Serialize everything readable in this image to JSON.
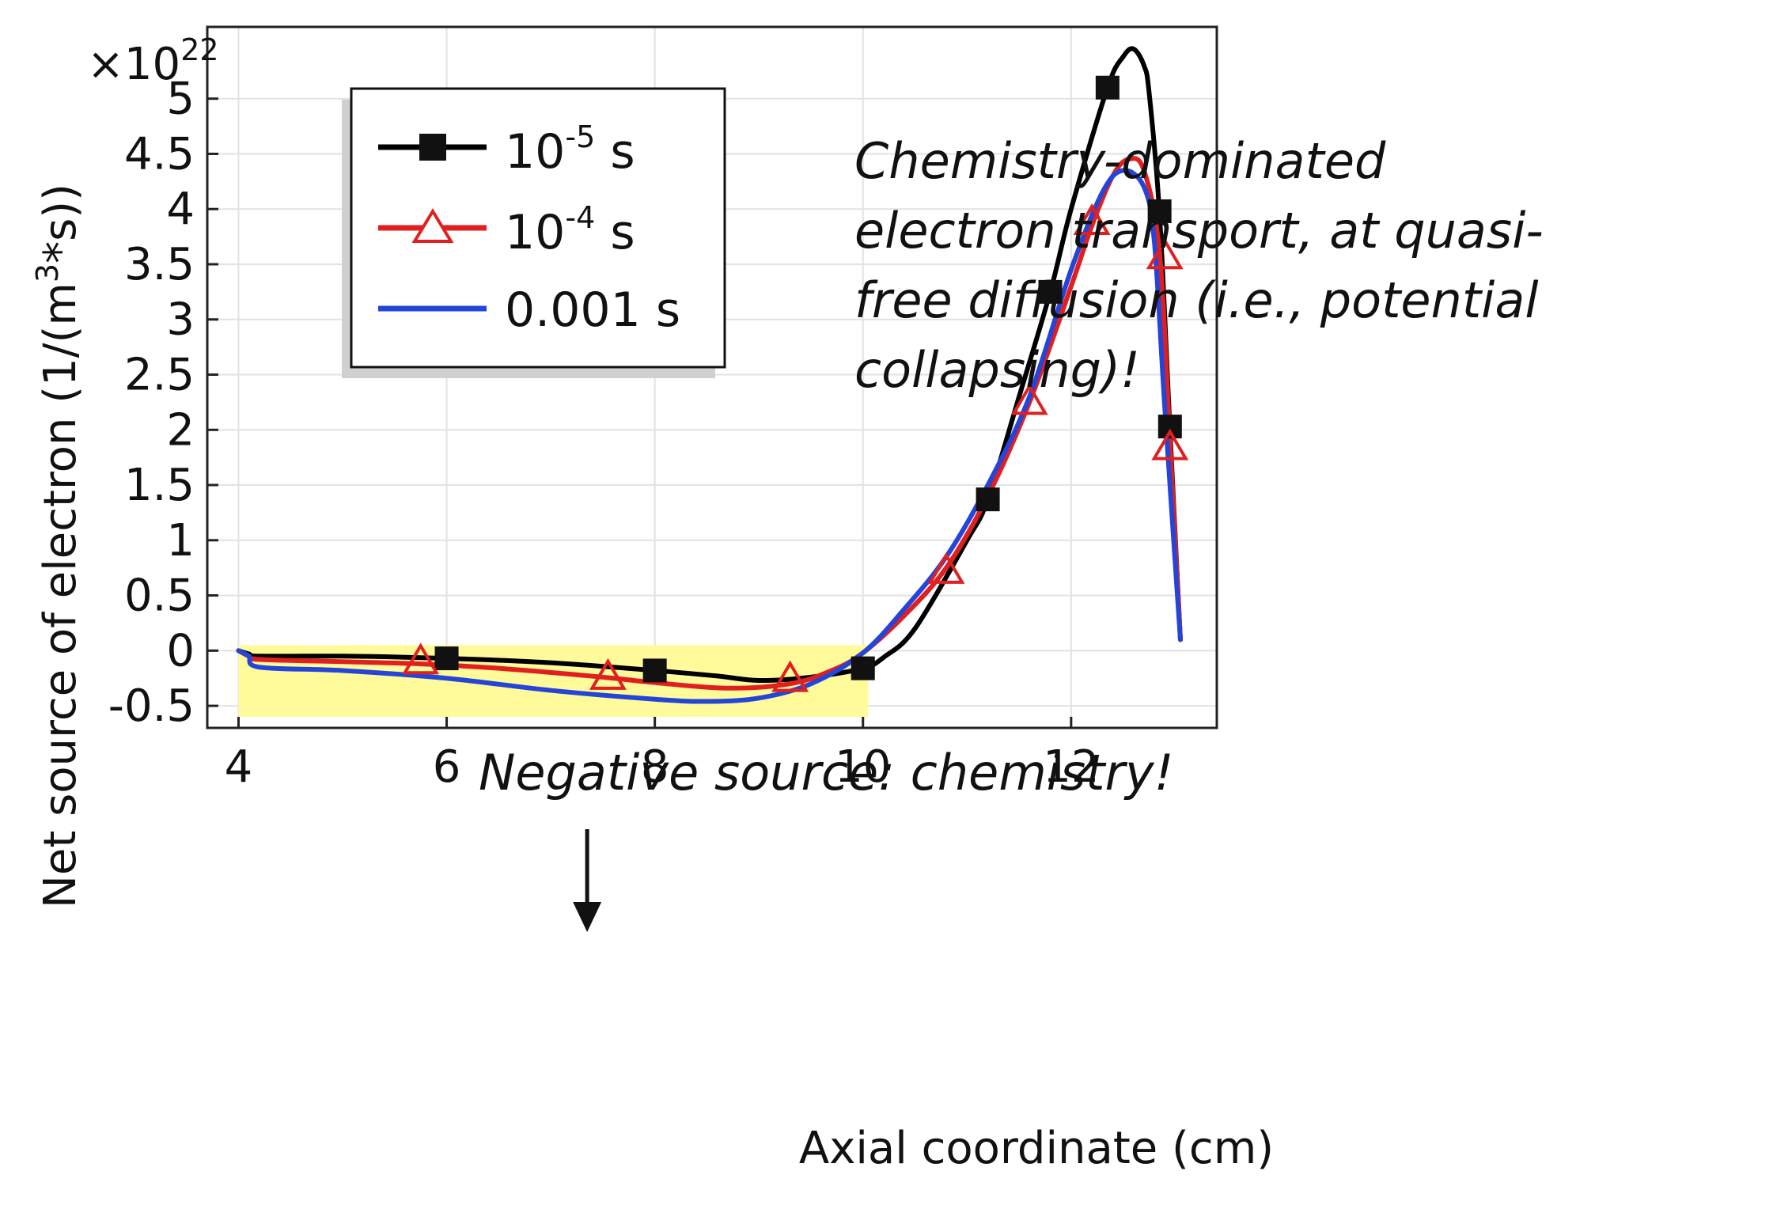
{
  "chart_data": {
    "type": "line",
    "xlabel": "Axial coordinate (cm)",
    "ylabel": "Net source of electron (1/(m³*s))",
    "ylabel_parts": {
      "pre": "Net source of electron (1/(m",
      "sup": "3",
      "post": "*s))"
    },
    "y_multiplier": {
      "base": "×10",
      "exp": "22"
    },
    "xlim": [
      3.7,
      13.4
    ],
    "ylim": [
      -0.7,
      5.65
    ],
    "x_ticks": [
      4,
      6,
      8,
      10,
      12
    ],
    "x_tick_labels": [
      "4",
      "6",
      "8",
      "10",
      "12"
    ],
    "y_ticks": [
      -0.5,
      0,
      0.5,
      1,
      1.5,
      2,
      2.5,
      3,
      3.5,
      4,
      4.5,
      5
    ],
    "y_tick_labels": [
      "-0.5",
      "0",
      "0.5",
      "1",
      "1.5",
      "2",
      "2.5",
      "3",
      "3.5",
      "4",
      "4.5",
      "5"
    ],
    "grid": true,
    "legend_position": "top-left",
    "series": [
      {
        "name": "10^-5 s",
        "label_base": "10",
        "label_exp": "-5",
        "label_unit": " s",
        "color": "#000000",
        "marker": "square",
        "x": [
          4.0,
          4.1,
          4.2,
          5.0,
          6.0,
          7.0,
          8.0,
          8.6,
          9.0,
          9.5,
          10.0,
          10.2,
          10.5,
          11.0,
          11.2,
          11.5,
          11.8,
          12.0,
          12.35,
          12.5,
          12.6,
          12.7,
          12.75,
          12.85,
          12.95,
          13.05
        ],
        "y": [
          0.0,
          -0.03,
          -0.05,
          -0.05,
          -0.07,
          -0.11,
          -0.18,
          -0.23,
          -0.27,
          -0.24,
          -0.16,
          -0.06,
          0.2,
          1.0,
          1.37,
          2.3,
          3.25,
          4.0,
          5.1,
          5.38,
          5.45,
          5.3,
          5.05,
          3.95,
          2.0,
          0.1
        ],
        "markers_x": [
          6.0,
          8.0,
          10.0,
          11.2,
          11.8,
          12.35,
          12.85,
          12.95
        ],
        "markers_y": [
          -0.07,
          -0.18,
          -0.16,
          1.37,
          3.25,
          5.1,
          3.98,
          2.03
        ]
      },
      {
        "name": "10^-4 s",
        "label_base": "10",
        "label_exp": "-4",
        "label_unit": " s",
        "color": "#e02020",
        "marker": "triangle",
        "x": [
          4.0,
          4.1,
          4.2,
          5.0,
          5.75,
          6.5,
          7.5,
          8.0,
          8.7,
          9.3,
          9.7,
          10.0,
          10.4,
          10.8,
          11.2,
          11.6,
          12.0,
          12.2,
          12.4,
          12.55,
          12.7,
          12.85,
          12.95,
          13.05
        ],
        "y": [
          0.0,
          -0.05,
          -0.08,
          -0.1,
          -0.12,
          -0.16,
          -0.24,
          -0.29,
          -0.34,
          -0.3,
          -0.18,
          -0.02,
          0.32,
          0.75,
          1.4,
          2.25,
          3.3,
          3.85,
          4.3,
          4.45,
          4.35,
          3.6,
          1.9,
          0.1
        ],
        "markers_x": [
          5.75,
          7.55,
          9.3,
          10.8,
          11.6,
          12.2,
          12.9,
          12.95
        ],
        "markers_y": [
          -0.1,
          -0.24,
          -0.26,
          0.72,
          2.25,
          3.88,
          3.57,
          1.84
        ]
      },
      {
        "name": "0.001 s",
        "label_text": "0.001 s",
        "color": "#2545d8",
        "marker": "none",
        "x": [
          4.0,
          4.1,
          4.2,
          5.0,
          6.0,
          7.0,
          8.0,
          8.5,
          9.0,
          9.5,
          10.0,
          10.4,
          10.8,
          11.2,
          11.6,
          12.0,
          12.3,
          12.5,
          12.7,
          12.8,
          12.9,
          13.05
        ],
        "y": [
          0.0,
          -0.05,
          -0.15,
          -0.18,
          -0.25,
          -0.36,
          -0.44,
          -0.46,
          -0.43,
          -0.3,
          -0.02,
          0.38,
          0.85,
          1.5,
          2.3,
          3.45,
          4.15,
          4.35,
          4.2,
          3.7,
          2.2,
          0.1
        ]
      }
    ],
    "annotations": [
      {
        "lines": [
          "Chemistry-dominated",
          "electron transport, at quasi-",
          "free diffusion (i.e., potential",
          "collapsing)!"
        ]
      },
      {
        "lines": [
          "Negative source: chemistry!"
        ],
        "arrow_to_x": 7.35
      }
    ],
    "highlight": {
      "x_range": [
        4.0,
        10.05
      ],
      "y_range": [
        -0.6,
        0.05
      ],
      "color": "#fffa9a"
    }
  }
}
